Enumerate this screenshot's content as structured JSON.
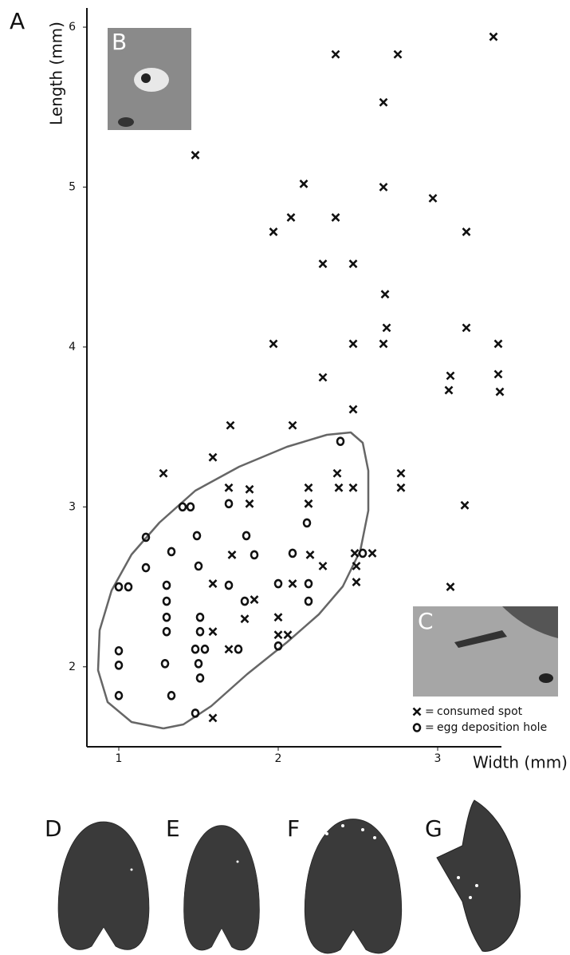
{
  "chart_data": {
    "type": "scatter",
    "x_label": "Width (mm)",
    "y_label": "Length (mm)",
    "xlim": [
      0.8,
      3.4
    ],
    "ylim": [
      1.5,
      6.12
    ],
    "xticks": [
      1,
      2,
      3
    ],
    "yticks": [
      2,
      3,
      4,
      5,
      6
    ],
    "legend_separator": "=",
    "panel_labels": [
      "A",
      "B",
      "C",
      "D",
      "E",
      "F",
      "G"
    ],
    "series": [
      {
        "name": "consumed spot",
        "marker": "x",
        "color": "#111111",
        "x": [
          3.35,
          2.36,
          2.75,
          2.66,
          1.48,
          2.16,
          2.66,
          2.97,
          2.08,
          2.36,
          1.97,
          3.18,
          2.28,
          2.47,
          2.67,
          2.68,
          3.18,
          1.97,
          2.47,
          2.66,
          3.38,
          2.28,
          3.08,
          3.38,
          3.07,
          3.39,
          2.47,
          1.7,
          2.09,
          1.59,
          1.28,
          2.37,
          2.77,
          1.69,
          1.82,
          2.19,
          2.38,
          2.47,
          2.77,
          1.82,
          2.19,
          3.17,
          1.71,
          2.2,
          2.48,
          2.59,
          2.49,
          2.28,
          2.49,
          2.09,
          1.59,
          3.08,
          1.85,
          1.79,
          2.0,
          1.59,
          2.0,
          2.06,
          1.69,
          1.59
        ],
        "y": [
          5.94,
          5.83,
          5.83,
          5.53,
          5.2,
          5.02,
          5.0,
          4.93,
          4.81,
          4.81,
          4.72,
          4.72,
          4.52,
          4.52,
          4.33,
          4.12,
          4.12,
          4.02,
          4.02,
          4.02,
          4.02,
          3.81,
          3.82,
          3.83,
          3.73,
          3.72,
          3.61,
          3.51,
          3.51,
          3.31,
          3.21,
          3.21,
          3.21,
          3.12,
          3.11,
          3.12,
          3.12,
          3.12,
          3.12,
          3.02,
          3.02,
          3.01,
          2.7,
          2.7,
          2.71,
          2.71,
          2.63,
          2.63,
          2.53,
          2.52,
          2.52,
          2.5,
          2.42,
          2.3,
          2.31,
          2.22,
          2.2,
          2.2,
          2.11,
          1.68
        ]
      },
      {
        "name": "egg deposition hole",
        "marker": "o",
        "color": "#111111",
        "x": [
          2.39,
          1.4,
          1.45,
          1.69,
          2.18,
          1.17,
          1.49,
          1.8,
          1.33,
          1.85,
          2.09,
          2.53,
          1.17,
          1.5,
          1.0,
          1.06,
          1.3,
          1.69,
          2.0,
          2.19,
          1.3,
          1.79,
          2.19,
          1.3,
          1.51,
          1.3,
          1.51,
          1.0,
          1.48,
          1.54,
          1.75,
          2.0,
          1.0,
          1.29,
          1.5,
          1.51,
          1.0,
          1.33,
          1.48
        ],
        "y": [
          3.41,
          3.0,
          3.0,
          3.02,
          2.9,
          2.81,
          2.82,
          2.82,
          2.72,
          2.7,
          2.71,
          2.71,
          2.62,
          2.63,
          2.5,
          2.5,
          2.51,
          2.51,
          2.52,
          2.52,
          2.41,
          2.41,
          2.41,
          2.31,
          2.31,
          2.22,
          2.22,
          2.1,
          2.11,
          2.11,
          2.11,
          2.13,
          2.01,
          2.02,
          2.02,
          1.93,
          1.82,
          1.82,
          1.71
        ]
      }
    ]
  }
}
